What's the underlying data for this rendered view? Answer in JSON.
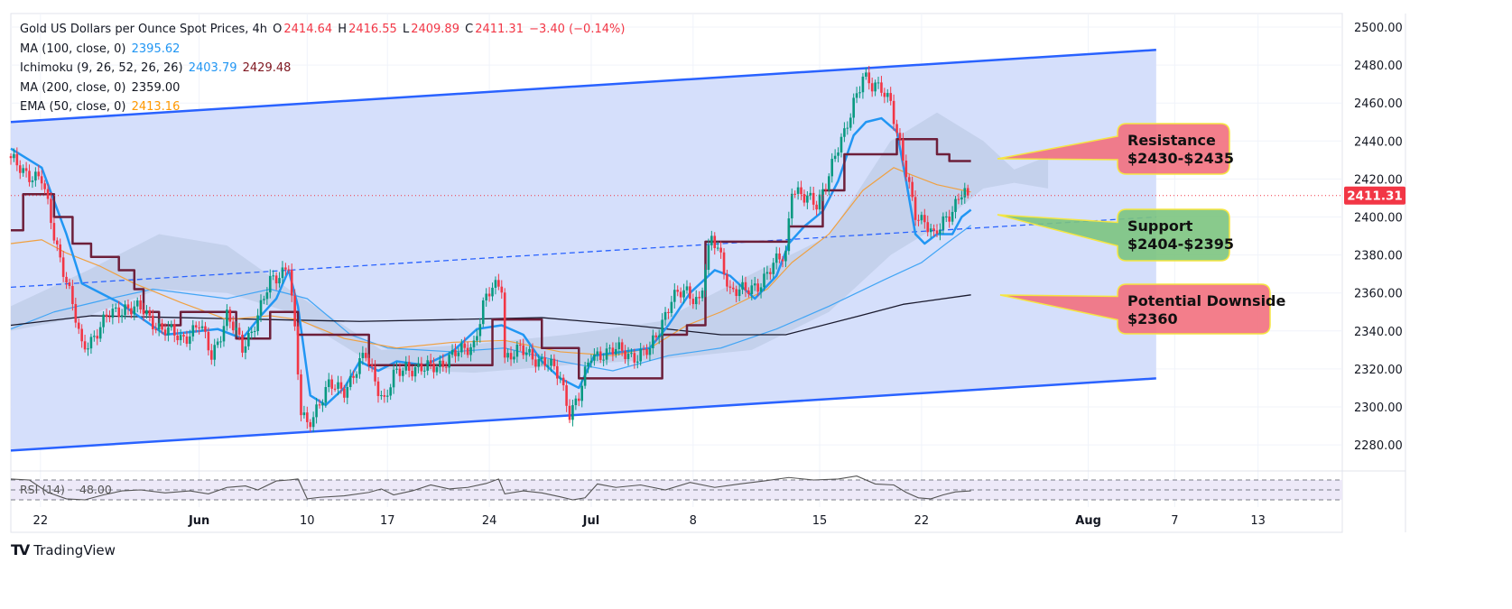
{
  "legend": {
    "title": "Gold US Dollars per Ounce Spot Prices, 4h",
    "o_label": "O",
    "o": "2414.64",
    "h_label": "H",
    "h": "2416.55",
    "l_label": "L",
    "l": "2409.89",
    "c_label": "C",
    "c": "2411.31",
    "change": "−3.40 (−0.14%)",
    "ma100_label": "MA (100, close, 0)",
    "ma100": "2395.62",
    "ichimoku_label": "Ichimoku (9, 26, 52, 26, 26)",
    "ichimoku_conv": "2403.79",
    "ichimoku_base": "2429.48",
    "ma200_label": "MA (200, close, 0)",
    "ma200": "2359.00",
    "ema50_label": "EMA (50, close, 0)",
    "ema50": "2413.16"
  },
  "callouts": {
    "resistance_1": "Resistance",
    "resistance_2": "$2430-$2435",
    "support_1": "Support",
    "support_2": "$2404-$2395",
    "downside_1": "Potential Downside",
    "downside_2": "$2360"
  },
  "last_price_label": "2411.31",
  "rsi": {
    "label": "RSI (14)",
    "value": "48.00"
  },
  "brand": "TradingView",
  "colors": {
    "up": "#089981",
    "down": "#f23645",
    "tenkan": "#2196f3",
    "kijun": "#6d1f3a",
    "ema50": "#f0a040",
    "ma100": "#42a5f5",
    "ma200": "#1a1a2e",
    "channel": "#2962ff",
    "channel_fill": "#d3ddfb",
    "resistance": "#f2707e",
    "support": "#7cc47f",
    "border": "#f5e642"
  },
  "chart_data": {
    "type": "candlestick",
    "title": "Gold US Dollars per Ounce Spot Prices, 4h",
    "x_unit": "4h bar index",
    "xlim": [
      0,
      431
    ],
    "ylim": [
      2269,
      2504
    ],
    "y_ticks": [
      2280,
      2300,
      2320,
      2340,
      2360,
      2380,
      2400,
      2420,
      2440,
      2460,
      2480,
      2500
    ],
    "x_ticks": [
      {
        "bar": 9.6,
        "label": "22",
        "bold": false
      },
      {
        "bar": 61,
        "label": "Jun",
        "bold": true
      },
      {
        "bar": 96,
        "label": "10",
        "bold": false
      },
      {
        "bar": 122,
        "label": "17",
        "bold": false
      },
      {
        "bar": 155,
        "label": "24",
        "bold": false
      },
      {
        "bar": 188,
        "label": "Jul",
        "bold": true
      },
      {
        "bar": 221,
        "label": "8",
        "bold": false
      },
      {
        "bar": 262,
        "label": "15",
        "bold": false
      },
      {
        "bar": 295,
        "label": "22",
        "bold": false
      },
      {
        "bar": 349,
        "label": "Aug",
        "bold": true
      },
      {
        "bar": 377,
        "label": "7",
        "bold": false
      },
      {
        "bar": 404,
        "label": "13",
        "bold": false
      }
    ],
    "close_path": [
      [
        0,
        2429
      ],
      [
        10,
        2419
      ],
      [
        14,
        2391
      ],
      [
        18,
        2367
      ],
      [
        23,
        2331
      ],
      [
        27,
        2338
      ],
      [
        32,
        2348
      ],
      [
        37,
        2353
      ],
      [
        43,
        2350
      ],
      [
        49,
        2341
      ],
      [
        55,
        2336
      ],
      [
        61,
        2343
      ],
      [
        65,
        2327
      ],
      [
        70,
        2348
      ],
      [
        75,
        2331
      ],
      [
        80,
        2348
      ],
      [
        84,
        2365
      ],
      [
        90,
        2376
      ],
      [
        92,
        2338
      ],
      [
        94,
        2296
      ],
      [
        96,
        2291
      ],
      [
        99,
        2300
      ],
      [
        103,
        2310
      ],
      [
        108,
        2310
      ],
      [
        112,
        2319
      ],
      [
        115,
        2327
      ],
      [
        118,
        2315
      ],
      [
        121,
        2303
      ],
      [
        124,
        2315
      ],
      [
        128,
        2322
      ],
      [
        134,
        2319
      ],
      [
        140,
        2324
      ],
      [
        146,
        2329
      ],
      [
        150,
        2334
      ],
      [
        153,
        2353
      ],
      [
        156,
        2362
      ],
      [
        159,
        2365
      ],
      [
        160,
        2327
      ],
      [
        165,
        2329
      ],
      [
        169,
        2327
      ],
      [
        173,
        2324
      ],
      [
        178,
        2315
      ],
      [
        181,
        2298
      ],
      [
        184,
        2305
      ],
      [
        188,
        2327
      ],
      [
        192,
        2329
      ],
      [
        198,
        2329
      ],
      [
        203,
        2327
      ],
      [
        207,
        2329
      ],
      [
        211,
        2346
      ],
      [
        214,
        2357
      ],
      [
        219,
        2360
      ],
      [
        223,
        2357
      ],
      [
        227,
        2388
      ],
      [
        230,
        2379
      ],
      [
        233,
        2362
      ],
      [
        238,
        2360
      ],
      [
        242,
        2365
      ],
      [
        246,
        2372
      ],
      [
        251,
        2381
      ],
      [
        253,
        2417
      ],
      [
        257,
        2409
      ],
      [
        261,
        2407
      ],
      [
        264,
        2419
      ],
      [
        267,
        2431
      ],
      [
        270,
        2443
      ],
      [
        273,
        2462
      ],
      [
        276,
        2474
      ],
      [
        279,
        2467
      ],
      [
        282,
        2469
      ],
      [
        285,
        2462
      ],
      [
        287,
        2443
      ],
      [
        290,
        2422
      ],
      [
        293,
        2403
      ],
      [
        296,
        2398
      ],
      [
        299,
        2388
      ],
      [
        302,
        2398
      ],
      [
        305,
        2405
      ],
      [
        308,
        2412
      ],
      [
        310,
        2411.31
      ]
    ],
    "series": [
      {
        "name": "MA (100, close, 0)",
        "color": "#42a5f5",
        "points": [
          [
            0,
            2341
          ],
          [
            14,
            2350
          ],
          [
            32,
            2357
          ],
          [
            46,
            2362
          ],
          [
            70,
            2357
          ],
          [
            84,
            2362
          ],
          [
            96,
            2357
          ],
          [
            110,
            2338
          ],
          [
            122,
            2331
          ],
          [
            143,
            2329
          ],
          [
            160,
            2331
          ],
          [
            178,
            2324
          ],
          [
            195,
            2319
          ],
          [
            213,
            2327
          ],
          [
            230,
            2331
          ],
          [
            248,
            2341
          ],
          [
            265,
            2353
          ],
          [
            283,
            2367
          ],
          [
            295,
            2376
          ],
          [
            303,
            2386
          ],
          [
            311,
            2395.62
          ]
        ]
      },
      {
        "name": "MA (200, close, 0)",
        "color": "#1a1a2e",
        "points": [
          [
            0,
            2343
          ],
          [
            26,
            2348
          ],
          [
            55,
            2347
          ],
          [
            84,
            2346
          ],
          [
            113,
            2345
          ],
          [
            143,
            2346
          ],
          [
            172,
            2347
          ],
          [
            201,
            2343
          ],
          [
            230,
            2338
          ],
          [
            251,
            2338
          ],
          [
            275,
            2348
          ],
          [
            289,
            2354
          ],
          [
            311,
            2359
          ]
        ]
      },
      {
        "name": "EMA (50, close, 0)",
        "color": "#f0a040",
        "points": [
          [
            0,
            2386
          ],
          [
            10,
            2388
          ],
          [
            18,
            2381
          ],
          [
            29,
            2374
          ],
          [
            40,
            2365
          ],
          [
            55,
            2355
          ],
          [
            70,
            2346
          ],
          [
            84,
            2348
          ],
          [
            93,
            2346
          ],
          [
            108,
            2336
          ],
          [
            125,
            2331
          ],
          [
            143,
            2334
          ],
          [
            160,
            2335
          ],
          [
            178,
            2329
          ],
          [
            195,
            2327
          ],
          [
            207,
            2331
          ],
          [
            219,
            2343
          ],
          [
            230,
            2350
          ],
          [
            245,
            2362
          ],
          [
            253,
            2376
          ],
          [
            265,
            2391
          ],
          [
            276,
            2414
          ],
          [
            286,
            2426
          ],
          [
            292,
            2422
          ],
          [
            300,
            2417
          ],
          [
            311,
            2413.16
          ]
        ]
      },
      {
        "name": "Ichimoku Conversion",
        "color": "#2196f3",
        "points": [
          [
            0,
            2436
          ],
          [
            10,
            2426
          ],
          [
            18,
            2391
          ],
          [
            23,
            2365
          ],
          [
            35,
            2355
          ],
          [
            50,
            2338
          ],
          [
            67,
            2341
          ],
          [
            75,
            2336
          ],
          [
            81,
            2348
          ],
          [
            86,
            2357
          ],
          [
            90,
            2372
          ],
          [
            93,
            2353
          ],
          [
            97,
            2306
          ],
          [
            102,
            2301
          ],
          [
            108,
            2310
          ],
          [
            113,
            2324
          ],
          [
            119,
            2319
          ],
          [
            125,
            2324
          ],
          [
            134,
            2322
          ],
          [
            143,
            2329
          ],
          [
            151,
            2341
          ],
          [
            159,
            2343
          ],
          [
            166,
            2338
          ],
          [
            172,
            2324
          ],
          [
            178,
            2315
          ],
          [
            184,
            2310
          ],
          [
            189,
            2327
          ],
          [
            198,
            2329
          ],
          [
            207,
            2331
          ],
          [
            213,
            2343
          ],
          [
            220,
            2360
          ],
          [
            228,
            2372
          ],
          [
            233,
            2369
          ],
          [
            241,
            2357
          ],
          [
            248,
            2369
          ],
          [
            252,
            2386
          ],
          [
            257,
            2395
          ],
          [
            263,
            2403
          ],
          [
            268,
            2419
          ],
          [
            273,
            2443
          ],
          [
            277,
            2450
          ],
          [
            282,
            2452
          ],
          [
            287,
            2445
          ],
          [
            290,
            2419
          ],
          [
            293,
            2391
          ],
          [
            296,
            2386
          ],
          [
            300,
            2391
          ],
          [
            305,
            2391
          ],
          [
            308,
            2400
          ],
          [
            311,
            2403.79
          ]
        ]
      },
      {
        "name": "Ichimoku Base",
        "color": "#6d1f3a",
        "step": true,
        "points": [
          [
            0,
            2393
          ],
          [
            4,
            2412
          ],
          [
            14,
            2400
          ],
          [
            20,
            2386
          ],
          [
            26,
            2379
          ],
          [
            35,
            2372
          ],
          [
            40,
            2362
          ],
          [
            43,
            2350
          ],
          [
            48,
            2343
          ],
          [
            55,
            2350
          ],
          [
            73,
            2336
          ],
          [
            84,
            2350
          ],
          [
            93,
            2338
          ],
          [
            116,
            2322
          ],
          [
            156,
            2346
          ],
          [
            172,
            2331
          ],
          [
            184,
            2315
          ],
          [
            211,
            2338
          ],
          [
            219,
            2343
          ],
          [
            225,
            2387
          ],
          [
            252,
            2395
          ],
          [
            263,
            2414
          ],
          [
            270,
            2433
          ],
          [
            287,
            2441
          ],
          [
            300,
            2433
          ],
          [
            304,
            2429.48
          ],
          [
            311,
            2429.48
          ]
        ]
      }
    ],
    "cloud_upper": [
      [
        0,
        2353
      ],
      [
        25,
        2372
      ],
      [
        48,
        2391
      ],
      [
        70,
        2385
      ],
      [
        90,
        2362
      ],
      [
        120,
        2330
      ],
      [
        150,
        2333
      ],
      [
        180,
        2338
      ],
      [
        210,
        2345
      ],
      [
        240,
        2370
      ],
      [
        265,
        2390
      ],
      [
        285,
        2440
      ],
      [
        300,
        2455
      ],
      [
        315,
        2440
      ],
      [
        325,
        2425
      ],
      [
        336,
        2432
      ]
    ],
    "cloud_lower": [
      [
        0,
        2340
      ],
      [
        25,
        2348
      ],
      [
        48,
        2362
      ],
      [
        70,
        2360
      ],
      [
        90,
        2350
      ],
      [
        120,
        2320
      ],
      [
        150,
        2318
      ],
      [
        180,
        2322
      ],
      [
        210,
        2325
      ],
      [
        240,
        2330
      ],
      [
        265,
        2350
      ],
      [
        285,
        2380
      ],
      [
        300,
        2395
      ],
      [
        315,
        2415
      ],
      [
        325,
        2418
      ],
      [
        336,
        2415
      ]
    ],
    "channel_upper": [
      [
        0,
        2450
      ],
      [
        371,
        2488
      ]
    ],
    "channel_lower": [
      [
        0,
        2277
      ],
      [
        371,
        2315
      ]
    ],
    "support_trendline": [
      [
        0,
        2363
      ],
      [
        371,
        2400
      ]
    ],
    "last_price": 2411.31,
    "rsi_series": [
      [
        0,
        72
      ],
      [
        6,
        70
      ],
      [
        12,
        45
      ],
      [
        18,
        32
      ],
      [
        24,
        30
      ],
      [
        30,
        40
      ],
      [
        36,
        48
      ],
      [
        42,
        50
      ],
      [
        50,
        44
      ],
      [
        58,
        48
      ],
      [
        64,
        42
      ],
      [
        70,
        55
      ],
      [
        76,
        58
      ],
      [
        80,
        50
      ],
      [
        86,
        68
      ],
      [
        90,
        70
      ],
      [
        93,
        72
      ],
      [
        96,
        32
      ],
      [
        100,
        35
      ],
      [
        108,
        38
      ],
      [
        116,
        45
      ],
      [
        120,
        52
      ],
      [
        124,
        40
      ],
      [
        130,
        48
      ],
      [
        136,
        60
      ],
      [
        142,
        52
      ],
      [
        148,
        55
      ],
      [
        154,
        63
      ],
      [
        158,
        72
      ],
      [
        160,
        42
      ],
      [
        166,
        48
      ],
      [
        172,
        44
      ],
      [
        178,
        36
      ],
      [
        182,
        30
      ],
      [
        186,
        34
      ],
      [
        190,
        62
      ],
      [
        196,
        55
      ],
      [
        204,
        60
      ],
      [
        212,
        50
      ],
      [
        220,
        65
      ],
      [
        228,
        55
      ],
      [
        236,
        62
      ],
      [
        244,
        68
      ],
      [
        252,
        75
      ],
      [
        260,
        70
      ],
      [
        268,
        72
      ],
      [
        274,
        78
      ],
      [
        280,
        62
      ],
      [
        286,
        60
      ],
      [
        290,
        45
      ],
      [
        294,
        34
      ],
      [
        298,
        32
      ],
      [
        302,
        40
      ],
      [
        306,
        46
      ],
      [
        311,
        48
      ]
    ],
    "rsi_levels": [
      70,
      50,
      30
    ]
  }
}
